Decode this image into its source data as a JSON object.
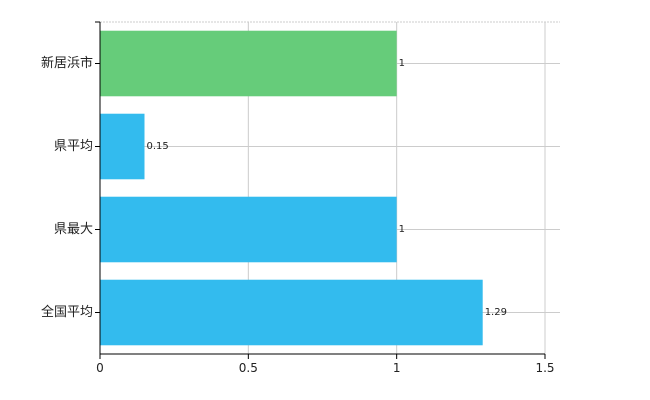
{
  "chart_data": {
    "type": "bar",
    "orientation": "horizontal",
    "categories": [
      "新居浜市",
      "県平均",
      "県最大",
      "全国平均"
    ],
    "values": [
      1,
      0.15,
      1,
      1.29
    ],
    "data_labels": [
      "1",
      "0.15",
      "1",
      "1.29"
    ],
    "bar_colors": [
      "#66cc7a",
      "#33bbee",
      "#33bbee",
      "#33bbee"
    ],
    "xlim": [
      0,
      1.5
    ],
    "x_ticks": [
      0,
      0.5,
      1,
      1.5
    ],
    "x_tick_labels": [
      "0",
      "0.5",
      "1",
      "1.5"
    ],
    "grid": true,
    "grid_color": "#cccccc",
    "title": "",
    "xlabel": "",
    "ylabel": ""
  }
}
